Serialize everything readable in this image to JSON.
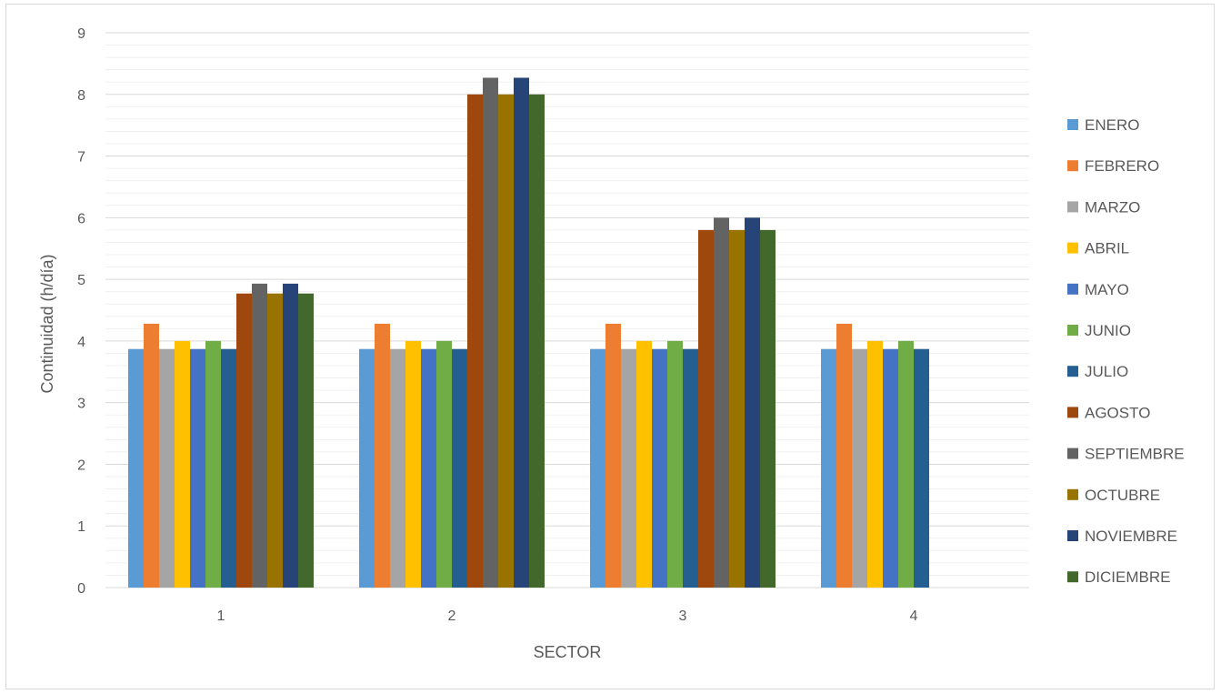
{
  "chart_data": {
    "type": "bar",
    "title": "",
    "xlabel": "SECTOR",
    "ylabel": "Continuidad (h/día)",
    "ylim": [
      0,
      9
    ],
    "yticks": [
      "0",
      "1",
      "2",
      "3",
      "4",
      "5",
      "6",
      "7",
      "8",
      "9"
    ],
    "categories": [
      "1",
      "2",
      "3",
      "4"
    ],
    "grid": true,
    "legend_position": "right",
    "series": [
      {
        "name": "ENERO",
        "color": "#5B9BD5",
        "values": [
          3.87,
          3.87,
          3.87,
          3.87
        ]
      },
      {
        "name": "FEBRERO",
        "color": "#ED7D31",
        "values": [
          4.28,
          4.28,
          4.28,
          4.28
        ]
      },
      {
        "name": "MARZO",
        "color": "#A5A5A5",
        "values": [
          3.87,
          3.87,
          3.87,
          3.87
        ]
      },
      {
        "name": "ABRIL",
        "color": "#FFC000",
        "values": [
          4.0,
          4.0,
          4.0,
          4.0
        ]
      },
      {
        "name": "MAYO",
        "color": "#4472C4",
        "values": [
          3.87,
          3.87,
          3.87,
          3.87
        ]
      },
      {
        "name": "JUNIO",
        "color": "#70AD47",
        "values": [
          4.0,
          4.0,
          4.0,
          4.0
        ]
      },
      {
        "name": "JULIO",
        "color": "#255E91",
        "values": [
          3.87,
          3.87,
          3.87,
          3.87
        ]
      },
      {
        "name": "AGOSTO",
        "color": "#9E480E",
        "values": [
          4.77,
          8.0,
          5.8,
          null
        ]
      },
      {
        "name": "SEPTIEMBRE",
        "color": "#636363",
        "values": [
          4.93,
          8.27,
          6.0,
          null
        ]
      },
      {
        "name": "OCTUBRE",
        "color": "#997300",
        "values": [
          4.77,
          8.0,
          5.8,
          null
        ]
      },
      {
        "name": "NOVIEMBRE",
        "color": "#264478",
        "values": [
          4.93,
          8.27,
          6.0,
          null
        ]
      },
      {
        "name": "DICIEMBRE",
        "color": "#43682B",
        "values": [
          4.77,
          8.0,
          5.8,
          null
        ]
      }
    ]
  }
}
